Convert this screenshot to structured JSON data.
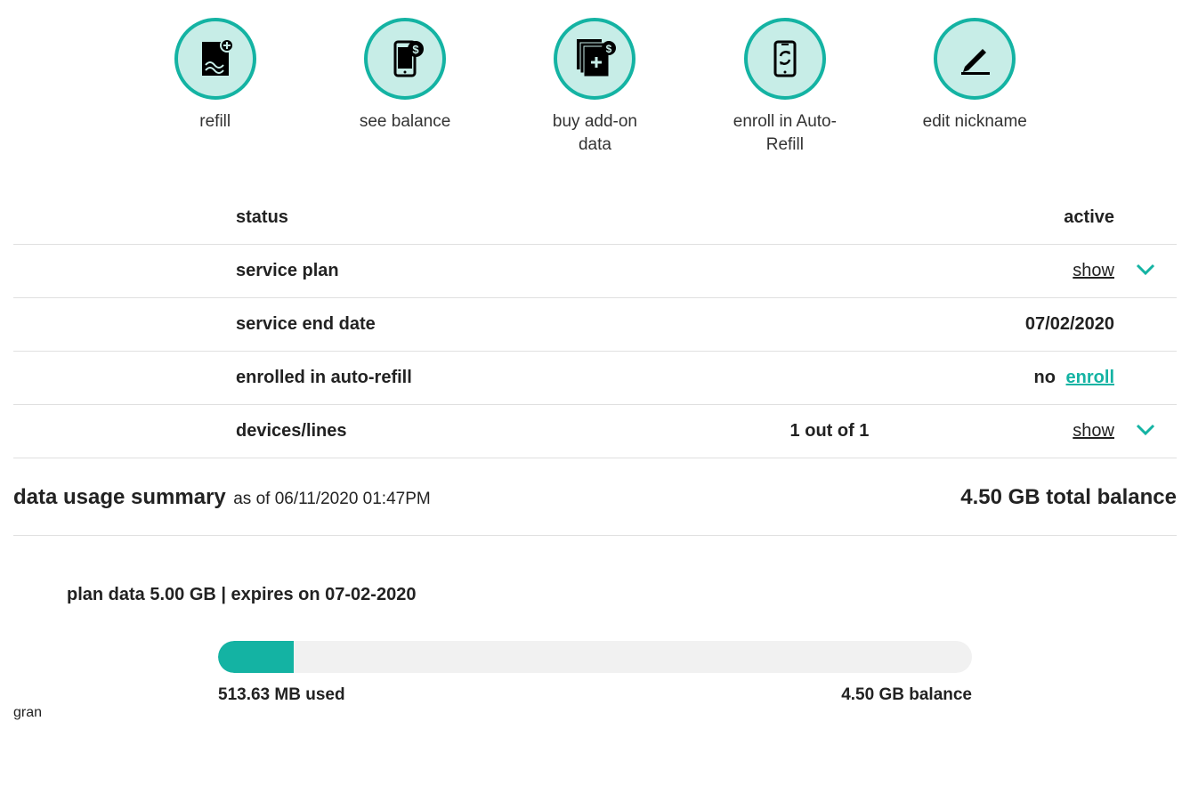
{
  "colors": {
    "accent": "#14b3a3",
    "circle_fill": "#c7ede7",
    "bar_bg": "#f1f1f1",
    "border": "#e0e0e0"
  },
  "actions": {
    "refill": "refill",
    "see_balance": "see balance",
    "buy_addon": "buy add-on data",
    "enroll_autorefill": "enroll in Auto-Refill",
    "edit_nickname": "edit nickname"
  },
  "rows": {
    "status": {
      "label": "status",
      "value": "active"
    },
    "service_plan": {
      "label": "service plan",
      "show": "show"
    },
    "service_end": {
      "label": "service end date",
      "value": "07/02/2020"
    },
    "auto_refill": {
      "label": "enrolled in auto-refill",
      "value": "no",
      "enroll": "enroll"
    },
    "devices": {
      "label": "devices/lines",
      "mid": "1 out of 1",
      "show": "show"
    }
  },
  "summary": {
    "title": "data usage summary",
    "asof": "as of 06/11/2020 01:47PM",
    "total_balance": "4.50 GB total balance"
  },
  "plan": {
    "info": "plan data 5.00 GB | expires on 07-02-2020",
    "used_label": "513.63 MB used",
    "balance_label": "4.50 GB balance",
    "fill_percent": 10
  }
}
